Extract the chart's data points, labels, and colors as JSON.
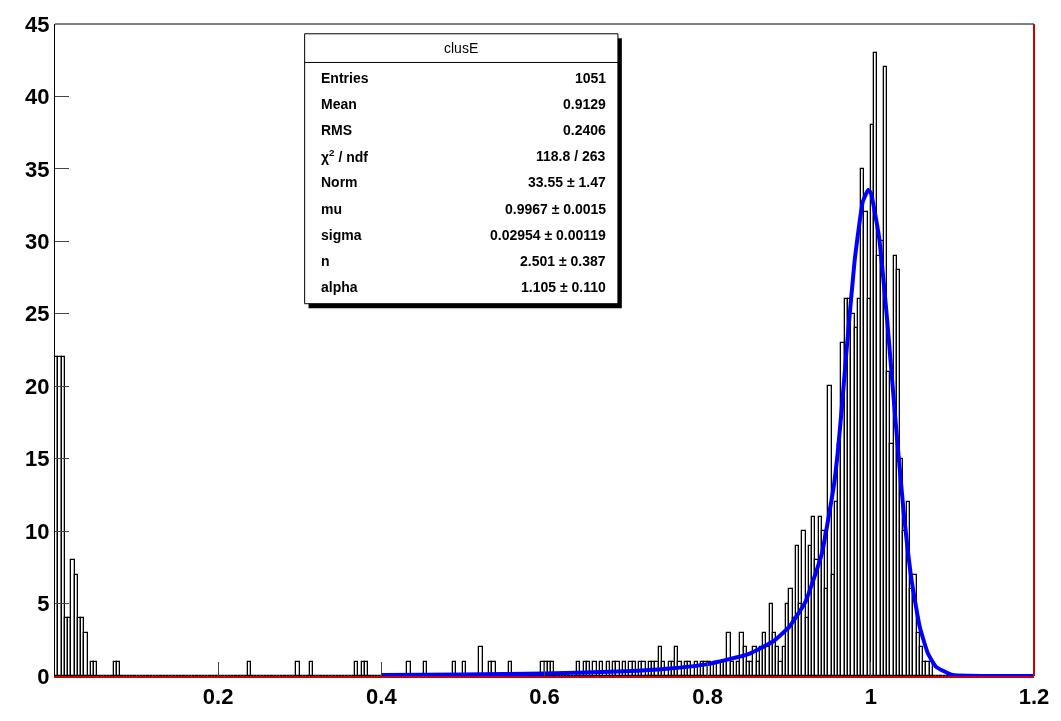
{
  "chart_data": {
    "type": "histogram",
    "bins": [
      0,
      0.004,
      0.008,
      0.012,
      0.016,
      0.02,
      0.024,
      0.028,
      0.032,
      0.036,
      0.04,
      0.044,
      0.048,
      0.052,
      0.056,
      0.06,
      0.064,
      0.068,
      0.072,
      0.076,
      0.08,
      0.084,
      0.088,
      0.092,
      0.096,
      0.1,
      0.104,
      0.108,
      0.112,
      0.116,
      0.12,
      0.124,
      0.128,
      0.132,
      0.136,
      0.14,
      0.144,
      0.148,
      0.152,
      0.156,
      0.16,
      0.164,
      0.168,
      0.172,
      0.176,
      0.18,
      0.184,
      0.188,
      0.192,
      0.196,
      0.2,
      0.204,
      0.208,
      0.212,
      0.216,
      0.22,
      0.224,
      0.228,
      0.232,
      0.236,
      0.24,
      0.244,
      0.248,
      0.252,
      0.256,
      0.26,
      0.264,
      0.268,
      0.272,
      0.276,
      0.28,
      0.284,
      0.288,
      0.292,
      0.296,
      0.3,
      0.304,
      0.308,
      0.312,
      0.316,
      0.32,
      0.324,
      0.328,
      0.332,
      0.336,
      0.34,
      0.344,
      0.348,
      0.352,
      0.356,
      0.36,
      0.364,
      0.368,
      0.372,
      0.376,
      0.38,
      0.384,
      0.388,
      0.392,
      0.396,
      0.4,
      0.404,
      0.408,
      0.412,
      0.416,
      0.42,
      0.424,
      0.428,
      0.432,
      0.436,
      0.44,
      0.444,
      0.448,
      0.452,
      0.456,
      0.46,
      0.464,
      0.468,
      0.472,
      0.476,
      0.48,
      0.484,
      0.488,
      0.492,
      0.496,
      0.5,
      0.504,
      0.508,
      0.512,
      0.516,
      0.52,
      0.524,
      0.528,
      0.532,
      0.536,
      0.54,
      0.544,
      0.548,
      0.552,
      0.556,
      0.56,
      0.564,
      0.568,
      0.572,
      0.576,
      0.58,
      0.584,
      0.588,
      0.592,
      0.596,
      0.6,
      0.604,
      0.608,
      0.612,
      0.616,
      0.62,
      0.624,
      0.628,
      0.632,
      0.636,
      0.64,
      0.644,
      0.648,
      0.652,
      0.656,
      0.66,
      0.664,
      0.668,
      0.672,
      0.676,
      0.68,
      0.684,
      0.688,
      0.692,
      0.696,
      0.7,
      0.704,
      0.708,
      0.712,
      0.716,
      0.72,
      0.724,
      0.728,
      0.732,
      0.736,
      0.74,
      0.744,
      0.748,
      0.752,
      0.756,
      0.76,
      0.764,
      0.768,
      0.772,
      0.776,
      0.78,
      0.784,
      0.788,
      0.792,
      0.796,
      0.8,
      0.804,
      0.808,
      0.812,
      0.816,
      0.82,
      0.824,
      0.828,
      0.832,
      0.836,
      0.84,
      0.844,
      0.848,
      0.852,
      0.856,
      0.86,
      0.864,
      0.868,
      0.872,
      0.876,
      0.88,
      0.884,
      0.888,
      0.892,
      0.896,
      0.9,
      0.904,
      0.908,
      0.912,
      0.916,
      0.92,
      0.924,
      0.928,
      0.932,
      0.936,
      0.94,
      0.944,
      0.948,
      0.952,
      0.956,
      0.96,
      0.964,
      0.968,
      0.972,
      0.976,
      0.98,
      0.984,
      0.988,
      0.992,
      0.996,
      1.0,
      1.004,
      1.008,
      1.012,
      1.016,
      1.02,
      1.024,
      1.028,
      1.032,
      1.036,
      1.04,
      1.044,
      1.048,
      1.052,
      1.056,
      1.06,
      1.064,
      1.068,
      1.072,
      1.076,
      1.08,
      1.084,
      1.088,
      1.092,
      1.096,
      1.1,
      1.104,
      1.108,
      1.112,
      1.116,
      1.12,
      1.124,
      1.128,
      1.132,
      1.136,
      1.14,
      1.144,
      1.148,
      1.152,
      1.156,
      1.16,
      1.164,
      1.168,
      1.172,
      1.176,
      1.18,
      1.184,
      1.188,
      1.192,
      1.196,
      1.2
    ],
    "values": [
      22,
      22,
      22,
      4,
      4,
      8,
      7,
      4,
      4,
      3,
      0,
      1,
      1,
      0,
      0,
      0,
      0,
      0,
      1,
      1,
      0,
      0,
      0,
      0,
      0,
      0,
      0,
      0,
      0,
      0,
      0,
      0,
      0,
      0,
      0,
      0,
      0,
      0,
      0,
      0,
      0,
      0,
      0,
      0,
      0,
      0,
      0,
      0,
      0,
      0,
      0,
      0,
      0,
      0,
      0,
      0,
      0,
      0,
      0,
      1,
      0,
      0,
      0,
      0,
      0,
      0,
      0,
      0,
      0,
      0,
      0,
      0,
      0,
      0,
      1,
      0,
      0,
      0,
      1,
      0,
      0,
      0,
      0,
      0,
      0,
      0,
      0,
      0,
      0,
      0,
      0,
      0,
      1,
      0,
      1,
      1,
      0,
      0,
      0,
      0,
      0,
      0,
      0,
      0,
      0,
      0,
      0,
      0,
      1,
      0,
      0,
      0,
      0,
      1,
      0,
      0,
      0,
      0,
      0,
      0,
      0,
      0,
      1,
      0,
      0,
      1,
      0,
      0,
      0,
      0,
      2,
      0,
      0,
      1,
      1,
      0,
      0,
      0,
      0,
      1,
      0,
      0,
      0,
      0,
      0,
      0,
      0,
      0,
      0,
      1,
      1,
      1,
      1,
      0,
      0,
      0,
      0,
      0,
      0,
      0,
      1,
      0,
      1,
      1,
      0,
      1,
      0,
      1,
      0,
      1,
      0,
      1,
      1,
      0,
      1,
      0,
      1,
      1,
      0,
      1,
      1,
      0,
      1,
      1,
      1,
      2,
      1,
      0,
      1,
      1,
      2,
      1,
      0,
      1,
      1,
      0,
      1,
      0,
      1,
      1,
      1,
      0,
      1,
      0,
      1,
      1,
      3,
      1,
      0,
      1,
      3,
      2,
      1,
      1,
      2,
      1,
      2,
      3,
      2,
      5,
      3,
      2,
      1,
      2,
      5,
      6,
      4,
      9,
      5,
      10,
      4,
      9,
      11,
      8,
      11,
      10,
      6,
      20,
      7,
      12,
      16,
      23,
      26,
      26,
      25,
      24,
      26,
      35,
      32,
      26,
      38,
      43,
      29,
      30,
      42,
      21,
      16,
      29,
      28,
      15,
      10,
      12,
      6,
      7,
      3,
      2,
      1,
      1,
      1,
      0,
      0,
      0,
      0,
      0,
      0,
      0,
      0,
      0,
      0,
      0,
      0,
      0,
      0,
      0,
      0,
      0,
      0,
      0,
      0,
      0,
      0,
      0,
      0,
      0,
      0,
      0,
      0,
      0,
      0,
      0
    ],
    "color": "#000000",
    "series": [
      {
        "type": "line",
        "color": "#0000ff",
        "x": [
          0.4,
          0.5,
          0.6,
          0.7,
          0.75,
          0.8,
          0.85,
          0.88,
          0.9,
          0.92,
          0.94,
          0.955,
          0.96,
          0.965,
          0.97,
          0.98,
          0.99,
          0.9967,
          1.0,
          1.01,
          1.02,
          1.03,
          1.04,
          1.05,
          1.06,
          1.07,
          1.08,
          1.1,
          1.12,
          1.15,
          1.2
        ],
        "values": [
          0.07,
          0.1,
          0.17,
          0.33,
          0.5,
          0.82,
          1.51,
          2.38,
          3.39,
          5.14,
          8.45,
          13.27,
          15.74,
          18.89,
          22.3,
          28.6,
          32.7,
          33.55,
          33.34,
          30.32,
          24.58,
          17.78,
          11.46,
          6.59,
          3.38,
          1.55,
          0.63,
          0.07,
          0.01,
          0,
          0
        ]
      }
    ],
    "xlim": [
      0,
      1.2
    ],
    "xticks": [
      0.2,
      0.4,
      0.6,
      0.8,
      1,
      1.2
    ],
    "ylim": [
      0,
      45
    ],
    "yticks": [
      0,
      5,
      10,
      15,
      20,
      25,
      30,
      35,
      40,
      45
    ],
    "annotations": [
      "clusE",
      "Entries",
      "1051",
      "Mean",
      "0.9129",
      "RMS",
      "0.2406",
      "χ$^{2}$ / ndf",
      "118.8 / 263",
      "Norm",
      "33.55 ± 1.47",
      "mu",
      "0.9967 ± 0.0015",
      "sigma",
      "0.02954 ± 0.00119",
      "n",
      "2.501 ± 0.387",
      "alpha",
      "1.105 ± 0.110"
    ]
  }
}
